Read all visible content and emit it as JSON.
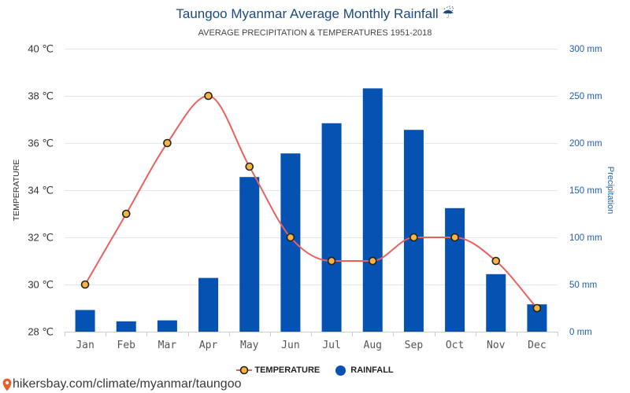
{
  "chart_data": {
    "type": "bar",
    "title": "Taungoo Myanmar Average Monthly Rainfall ☔",
    "subtitle": "AVERAGE PRECIPITATION & TEMPERATURES 1951-2018",
    "categories": [
      "Jan",
      "Feb",
      "Mar",
      "Apr",
      "May",
      "Jun",
      "Jul",
      "Aug",
      "Sep",
      "Oct",
      "Nov",
      "Dec"
    ],
    "series": [
      {
        "name": "TEMPERATURE",
        "type": "line",
        "values": [
          30,
          33,
          36,
          38,
          35,
          32,
          31,
          31,
          32,
          32,
          31,
          29
        ],
        "color": "#e9615e",
        "marker_color": "#f6b443",
        "marker_stroke": "#222222"
      },
      {
        "name": "RAINFALL",
        "type": "bar",
        "values": [
          23,
          11,
          12,
          57,
          164,
          189,
          221,
          258,
          214,
          131,
          61,
          29
        ],
        "color": "#0652b2"
      }
    ],
    "y_left": {
      "label": "TEMPERATURE",
      "range": [
        28,
        40
      ],
      "ticks": [
        28,
        30,
        32,
        34,
        36,
        38,
        40
      ],
      "tick_labels": [
        "28 ℃",
        "30 ℃",
        "32 ℃",
        "34 ℃",
        "36 ℃",
        "38 ℃",
        "40 ℃"
      ]
    },
    "y_right": {
      "label": "Precipitation",
      "range": [
        0,
        300
      ],
      "ticks": [
        0,
        50,
        100,
        150,
        200,
        250,
        300
      ],
      "tick_labels": [
        "0 mm",
        "50 mm",
        "100 mm",
        "150 mm",
        "200 mm",
        "250 mm",
        "300 mm"
      ],
      "color": "#1f5fa6"
    },
    "grid": true,
    "legend": {
      "placement": "bottom"
    }
  },
  "footer": {
    "icon": "location-pin-icon",
    "icon_color": "#ef5a2a",
    "text": "hikersbay.com/climate/myanmar/taungoo"
  },
  "colors": {
    "title": "#1b4b7d",
    "grid": "#e6e6e6",
    "axis": "#cccccc"
  }
}
